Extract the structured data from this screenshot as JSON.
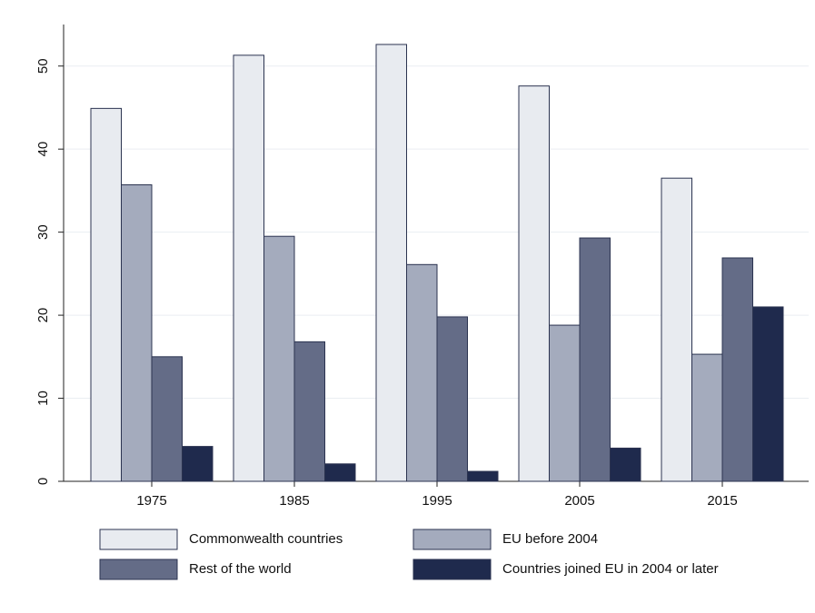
{
  "chart_data": {
    "type": "bar",
    "categories": [
      "1975",
      "1985",
      "1995",
      "2005",
      "2015"
    ],
    "series": [
      {
        "name": "Commonwealth countries",
        "color": "#e8ebf0",
        "values": [
          44.9,
          51.3,
          52.6,
          47.6,
          36.5
        ]
      },
      {
        "name": "EU before 2004",
        "color": "#a4abbd",
        "values": [
          35.7,
          29.5,
          26.1,
          18.8,
          15.3
        ]
      },
      {
        "name": "Rest of the world",
        "color": "#646c87",
        "values": [
          15.0,
          16.8,
          19.8,
          29.3,
          26.9
        ]
      },
      {
        "name": "Countries joined EU in 2004 or later",
        "color": "#1f2a4d",
        "values": [
          4.2,
          2.1,
          1.2,
          4.0,
          21.0
        ]
      }
    ],
    "ylim": [
      0,
      55
    ],
    "yticks": [
      0,
      10,
      20,
      30,
      40,
      50
    ],
    "grid": true
  }
}
